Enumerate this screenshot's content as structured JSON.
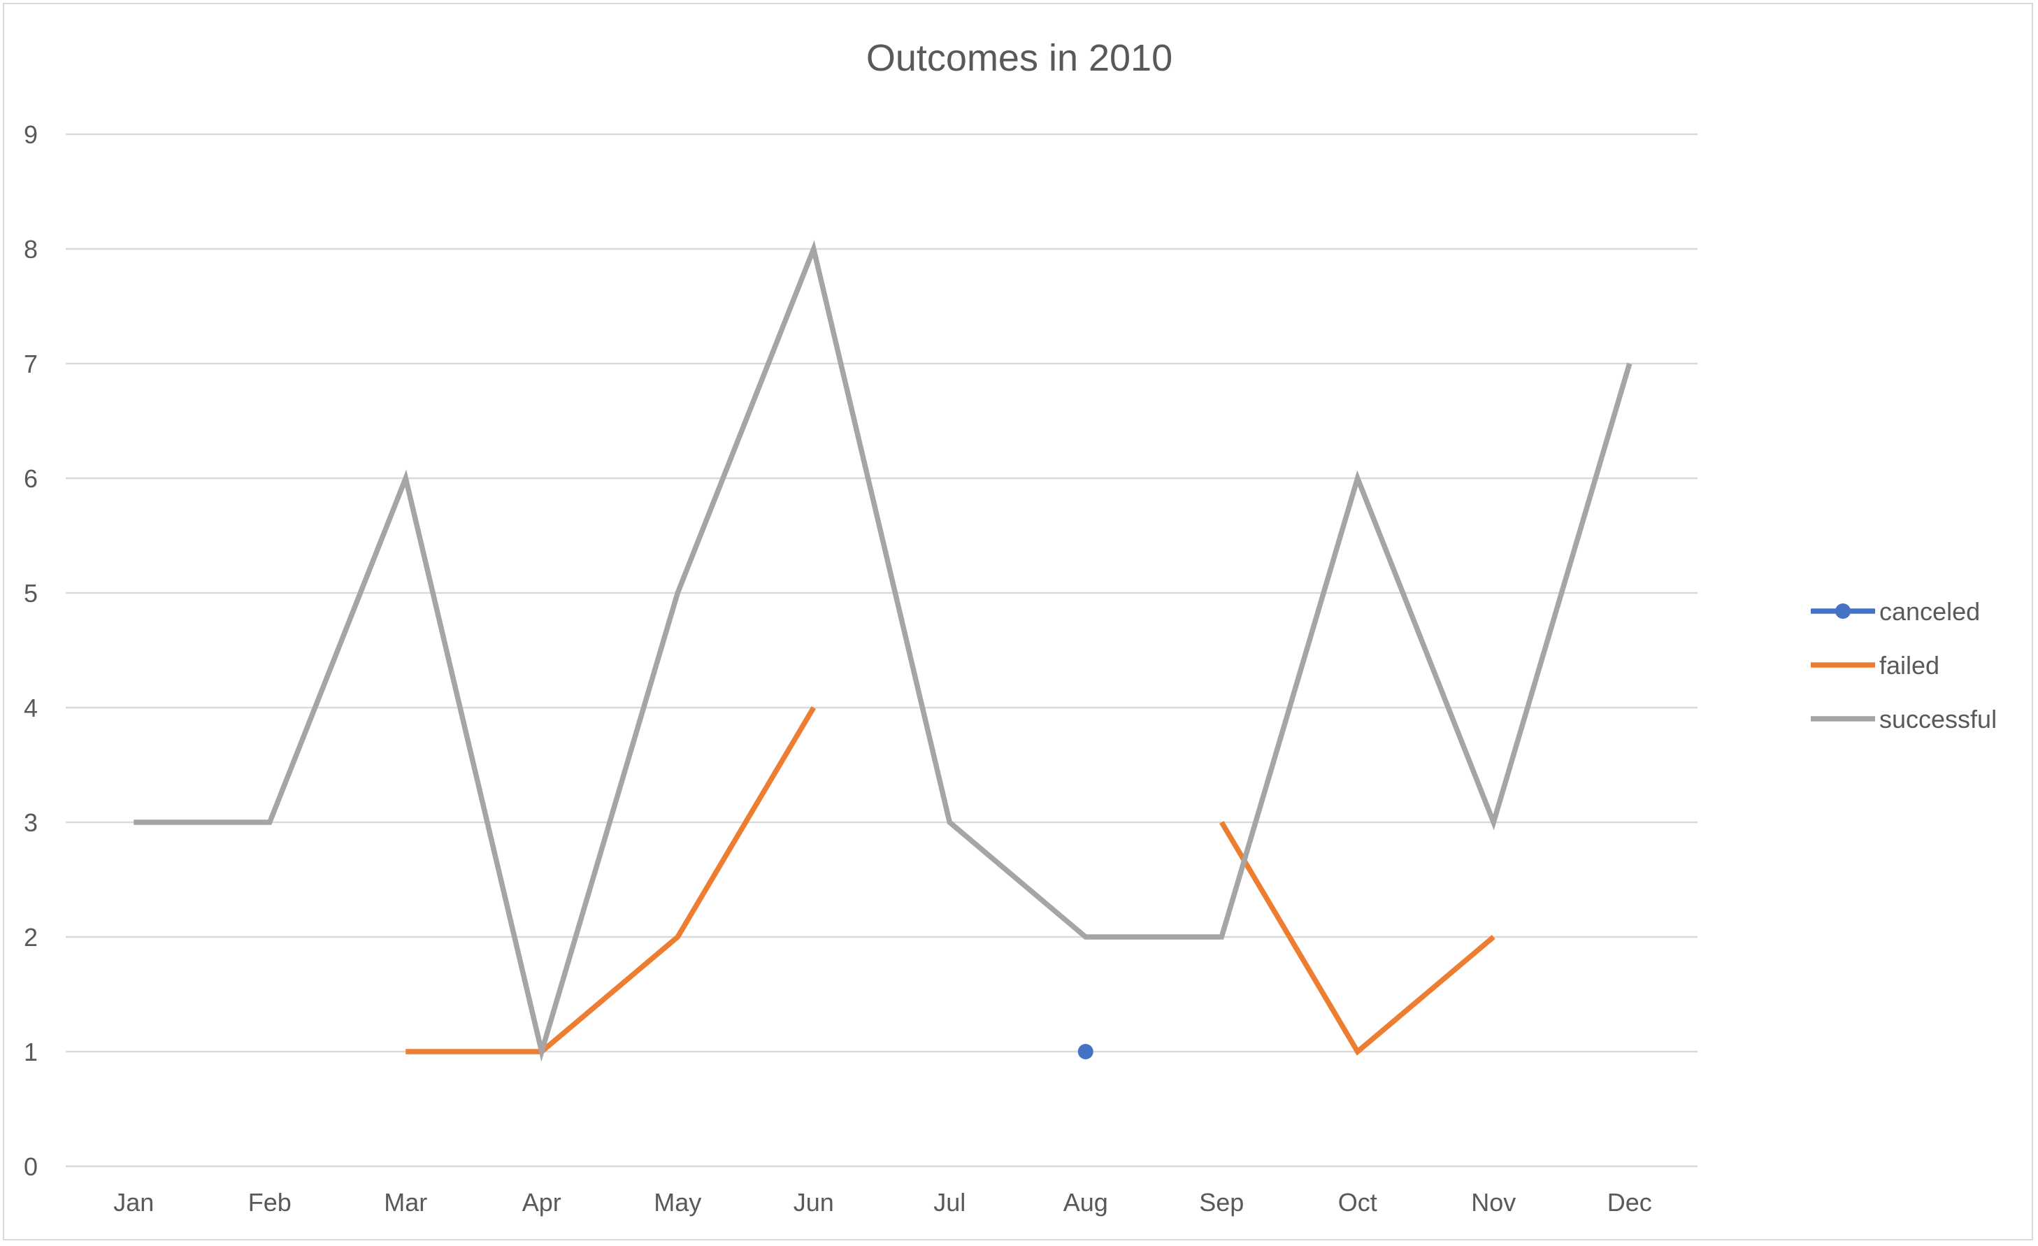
{
  "chart_data": {
    "type": "line",
    "title": "Outcomes in 2010",
    "xlabel": "",
    "ylabel": "",
    "categories": [
      "Jan",
      "Feb",
      "Mar",
      "Apr",
      "May",
      "Jun",
      "Jul",
      "Aug",
      "Sep",
      "Oct",
      "Nov",
      "Dec"
    ],
    "ylim": [
      0,
      9
    ],
    "yticks": [
      0,
      1,
      2,
      3,
      4,
      5,
      6,
      7,
      8,
      9
    ],
    "grid": true,
    "legend_position": "right",
    "series": [
      {
        "name": "canceled",
        "color": "#4472C4",
        "marker": "circle",
        "values": [
          null,
          null,
          null,
          null,
          null,
          null,
          null,
          1,
          null,
          null,
          null,
          null
        ]
      },
      {
        "name": "failed",
        "color": "#ED7D31",
        "marker": "none",
        "values": [
          null,
          null,
          1,
          1,
          2,
          4,
          null,
          null,
          3,
          1,
          2,
          null
        ]
      },
      {
        "name": "successful",
        "color": "#A5A5A5",
        "marker": "none",
        "values": [
          3,
          3,
          6,
          1,
          5,
          8,
          3,
          2,
          2,
          6,
          3,
          7
        ]
      }
    ]
  }
}
